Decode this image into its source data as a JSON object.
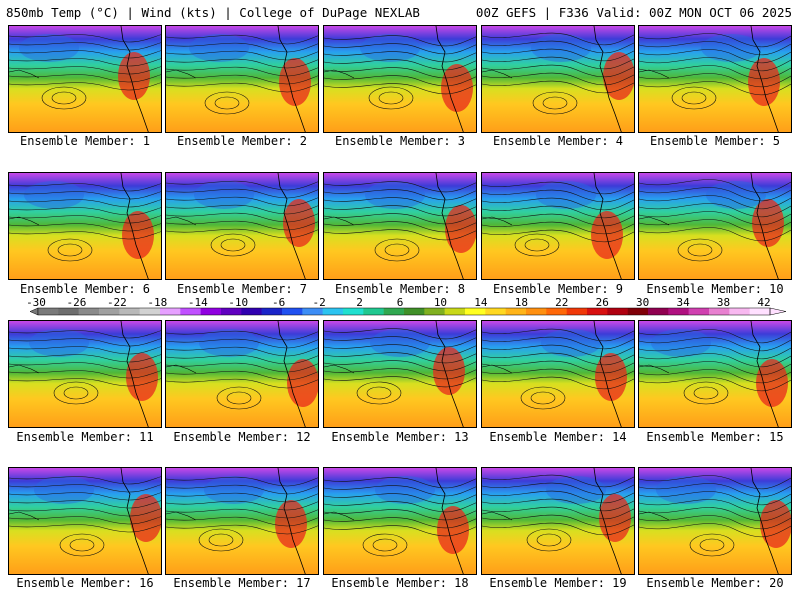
{
  "header": {
    "left": "850mb Temp (°C) | Wind (kts) | College of DuPage NEXLAB",
    "right": "00Z GEFS | F336 Valid: 00Z MON OCT 06 2025"
  },
  "member_label_prefix": "Ensemble Member:",
  "members": [
    "1",
    "2",
    "3",
    "4",
    "5",
    "6",
    "7",
    "8",
    "9",
    "10",
    "11",
    "12",
    "13",
    "14",
    "15",
    "16",
    "17",
    "18",
    "19",
    "20"
  ],
  "colorbar": {
    "tick_labels": [
      "-30",
      "-26",
      "-22",
      "-18",
      "-14",
      "-10",
      "-6",
      "-2",
      "2",
      "6",
      "10",
      "14",
      "18",
      "22",
      "26",
      "30",
      "34",
      "38",
      "42"
    ],
    "colors": [
      "#7a7a7a",
      "#6e6e6e",
      "#8a8a8a",
      "#a0a0a0",
      "#b9b9b9",
      "#d2d2d2",
      "#e6a0ff",
      "#c050ff",
      "#9000e0",
      "#6000c0",
      "#3000b0",
      "#1a24c8",
      "#2050f0",
      "#3d8df5",
      "#2cc3f0",
      "#20e0d0",
      "#20c890",
      "#30a850",
      "#409028",
      "#80b020",
      "#c8d818",
      "#ffff20",
      "#ffd820",
      "#ffb418",
      "#ff9010",
      "#ff6808",
      "#f03808",
      "#d81010",
      "#b00010",
      "#800008",
      "#900050",
      "#b01080",
      "#d040b0",
      "#e880d0",
      "#f8b8f0",
      "#ffe0ff"
    ]
  }
}
